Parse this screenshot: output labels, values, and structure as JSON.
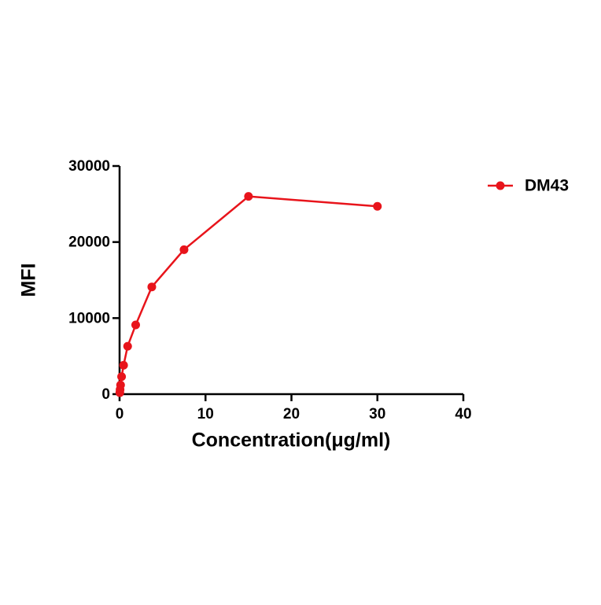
{
  "chart_data": {
    "type": "line",
    "x_label": "Concentration(μg/ml)",
    "y_label": "MFI",
    "series": [
      {
        "name": "DM43",
        "color": "#e8141b",
        "x": [
          30,
          15,
          7.5,
          3.75,
          1.875,
          0.9375,
          0.469,
          0.234,
          0.117,
          0.0586,
          0.0293
        ],
        "values": [
          24700,
          26000,
          19000,
          14100,
          9100,
          6300,
          3800,
          2300,
          1200,
          600,
          200
        ]
      }
    ],
    "xlim": [
      0,
      40
    ],
    "xticks": [
      0,
      10,
      20,
      30,
      40
    ],
    "ylim": [
      0,
      30000
    ],
    "yticks": [
      0,
      10000,
      20000,
      30000
    ],
    "legend": "right"
  }
}
